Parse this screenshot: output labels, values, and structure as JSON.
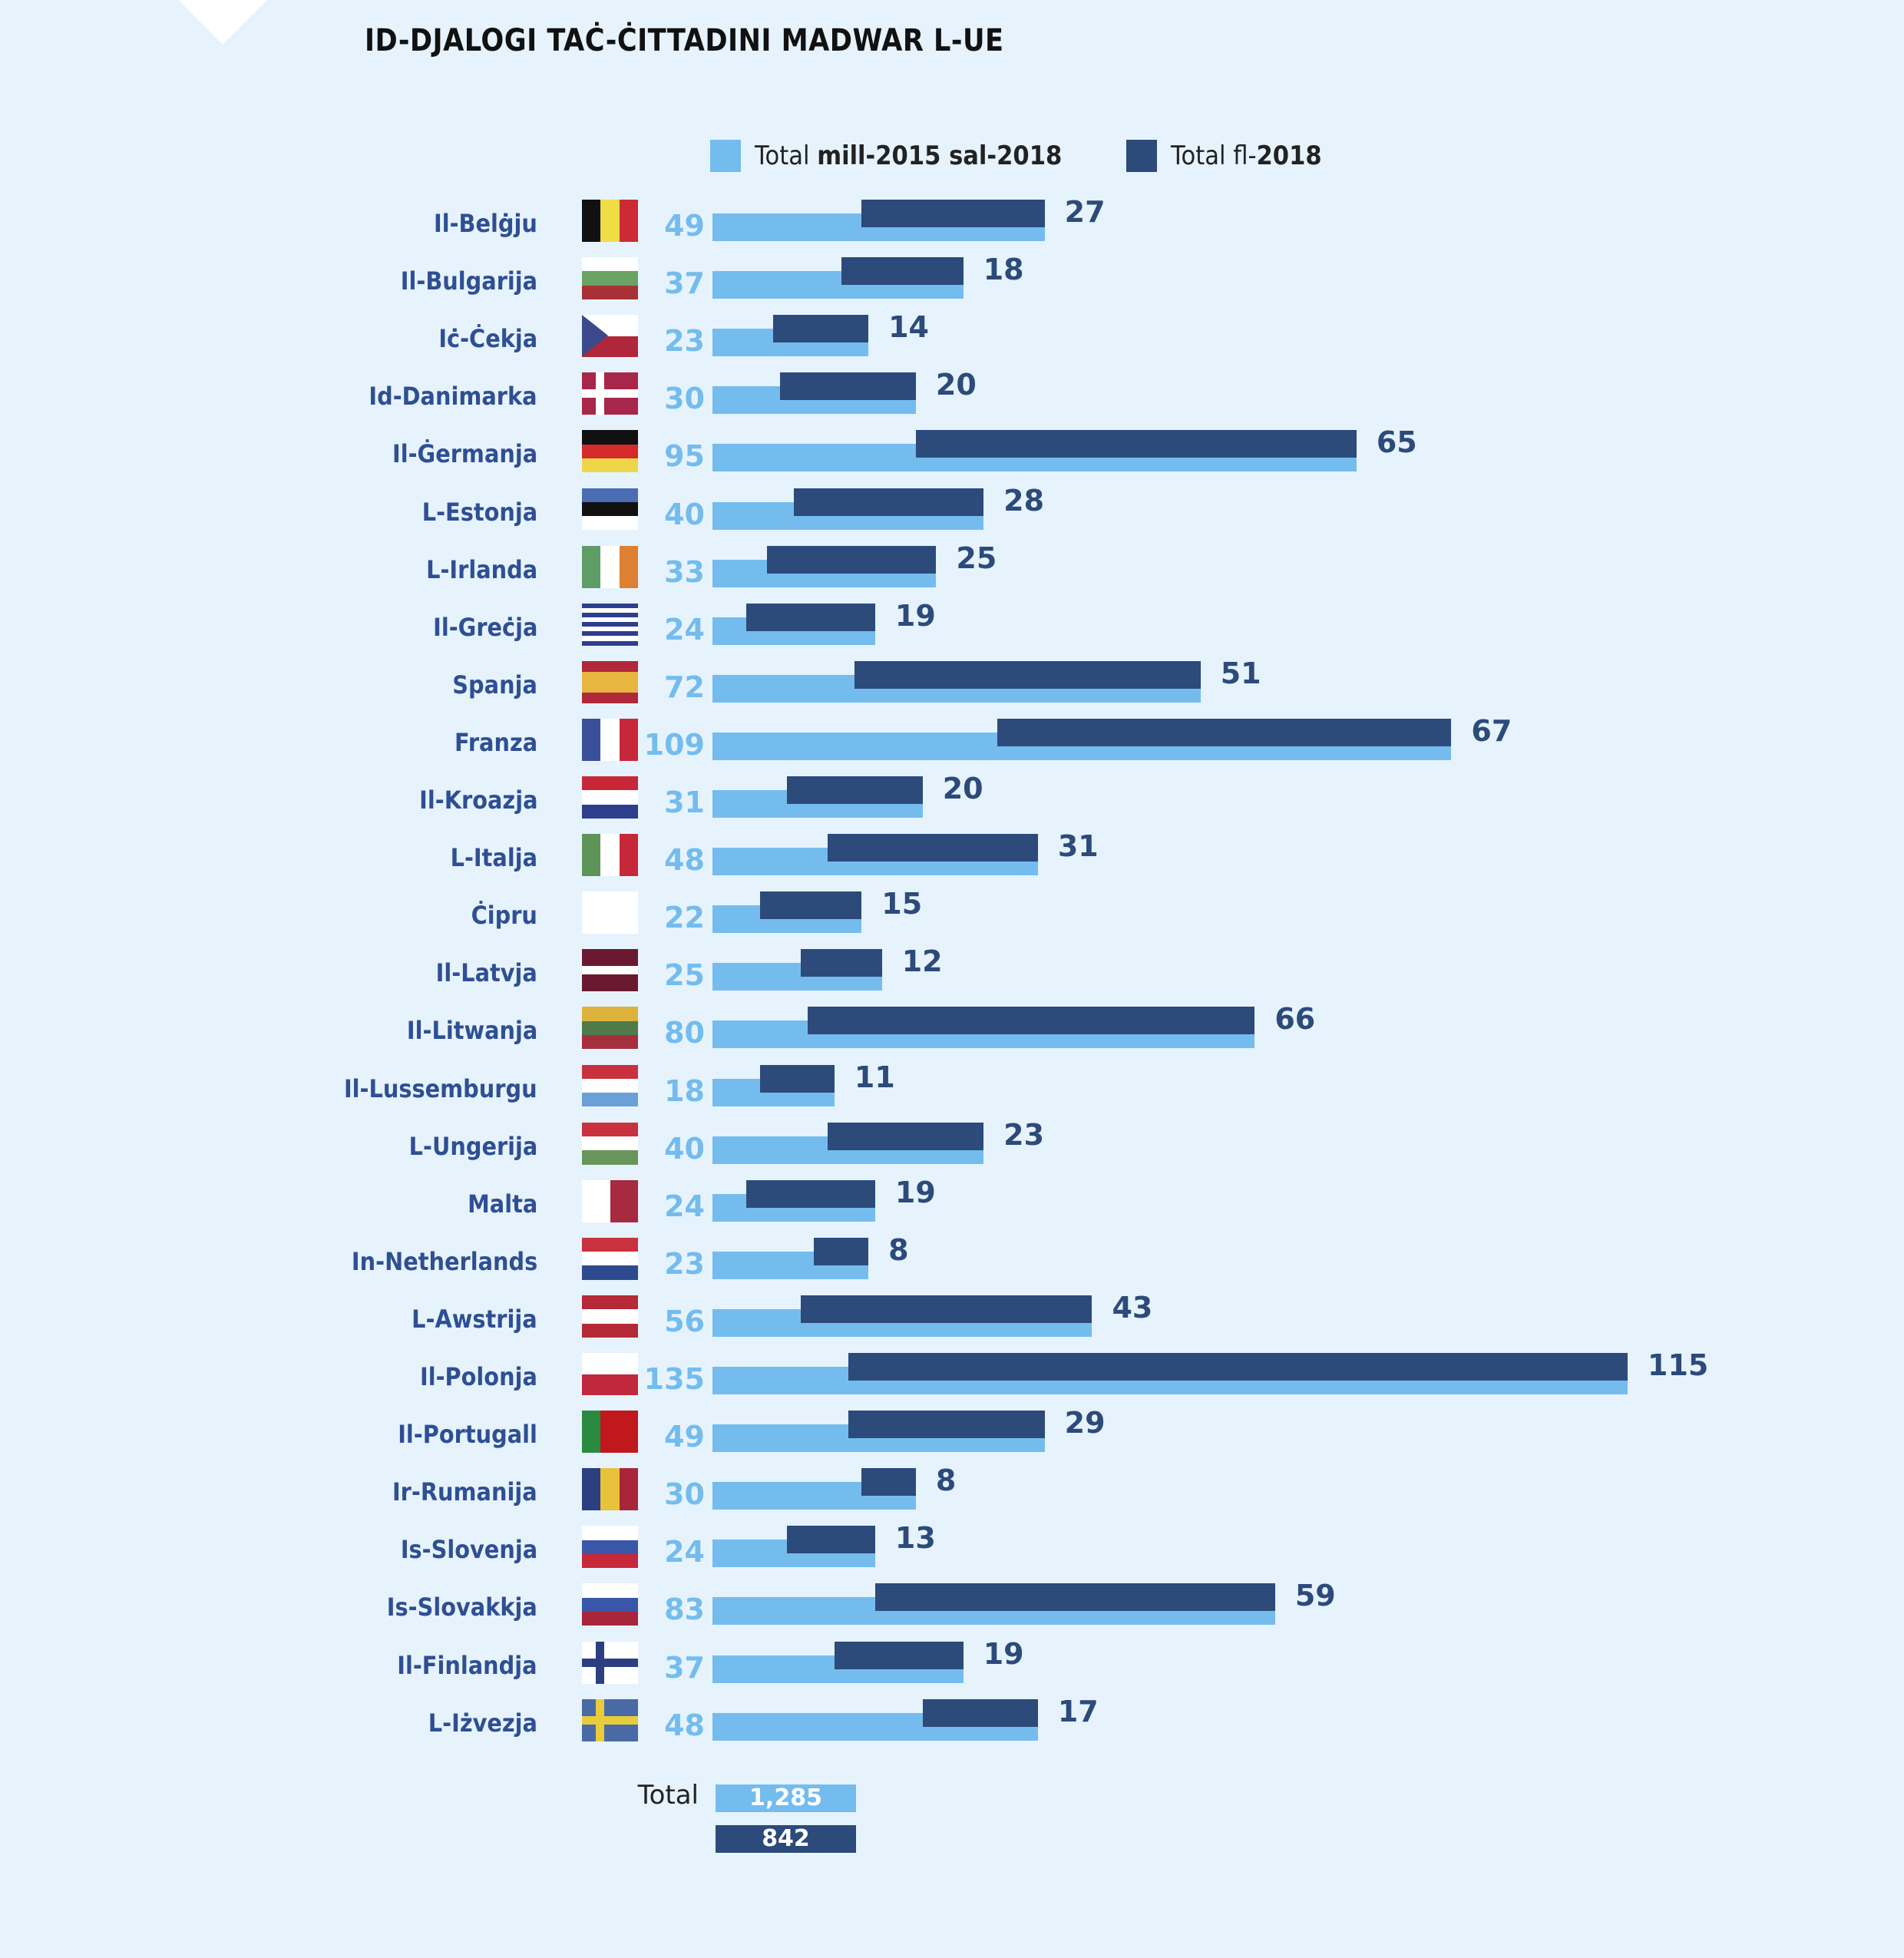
{
  "title": "ID-DJALOGI TAĊ-ĊITTADINI MADWAR L-UE",
  "colors": {
    "light": "#74bcee",
    "dark": "#2c4a7a",
    "background": "#e6f3fd",
    "label": "#2f4f94"
  },
  "chart_data": {
    "type": "bar",
    "orientation": "horizontal",
    "title": "ID-DJALOGI TAĊ-ĊITTADINI MADWAR L-UE",
    "legend": {
      "placement": "top",
      "entries": [
        {
          "prefix": "Total ",
          "bold": "mill-2015 sal-2018",
          "color": "#74bcee"
        },
        {
          "prefix": "Total fl-",
          "bold": "2018",
          "color": "#2c4a7a"
        }
      ]
    },
    "categories": [
      "Il-Belġju",
      "Il-Bulgarija",
      "Iċ-Ċekja",
      "Id-Danimarka",
      "Il-Ġermanja",
      "L-Estonja",
      "L-Irlanda",
      "Il-Greċja",
      "Spanja",
      "Franza",
      "Il-Kroazja",
      "L-Italja",
      "Ċipru",
      "Il-Latvja",
      "Il-Litwanja",
      "Il-Lussemburgu",
      "L-Ungerija",
      "Malta",
      "In-Netherlands",
      "L-Awstrija",
      "Il-Polonja",
      "Il-Portugall",
      "Ir-Rumanija",
      "Is-Slovenja",
      "Is-Slovakkja",
      "Il-Finlandja",
      "L-Iżvezja"
    ],
    "series": [
      {
        "name": "Total mill-2015 sal-2018",
        "values": [
          49,
          37,
          23,
          30,
          95,
          40,
          33,
          24,
          72,
          109,
          31,
          48,
          22,
          25,
          80,
          18,
          40,
          24,
          23,
          56,
          135,
          49,
          30,
          24,
          83,
          37,
          48
        ]
      },
      {
        "name": "Total fl-2018",
        "values": [
          27,
          18,
          14,
          20,
          65,
          28,
          25,
          19,
          51,
          67,
          20,
          31,
          15,
          12,
          66,
          11,
          23,
          19,
          8,
          43,
          115,
          29,
          8,
          13,
          59,
          19,
          17
        ]
      }
    ],
    "flags": [
      {
        "d": "v",
        "c": [
          "#111",
          "#eedd44",
          "#cc2b35"
        ]
      },
      {
        "d": "h",
        "c": [
          "#fff",
          "#6aa364",
          "#a83138"
        ]
      },
      {
        "d": "cz",
        "c": [
          "#fff",
          "#b0263a",
          "#3a4a8a"
        ]
      },
      {
        "d": "cross",
        "c": [
          "#a8264a",
          "#fff"
        ]
      },
      {
        "d": "h",
        "c": [
          "#111",
          "#d42a2a",
          "#eed64a"
        ]
      },
      {
        "d": "h",
        "c": [
          "#4a6cb3",
          "#111",
          "#fff"
        ]
      },
      {
        "d": "v",
        "c": [
          "#5e9e66",
          "#fff",
          "#dd8034"
        ]
      },
      {
        "d": "h",
        "c": [
          "#2d3f8c",
          "#fff",
          "#2d3f8c",
          "#fff",
          "#2d3f8c",
          "#fff",
          "#2d3f8c",
          "#fff",
          "#2d3f8c"
        ]
      },
      {
        "d": "h",
        "c": [
          "#b0283a",
          "#e8b540",
          "#e8b540",
          "#b0283a"
        ]
      },
      {
        "d": "v",
        "c": [
          "#3a4f9a",
          "#fff",
          "#c6283a"
        ]
      },
      {
        "d": "h",
        "c": [
          "#c62838",
          "#fff",
          "#2d3f8c"
        ]
      },
      {
        "d": "v",
        "c": [
          "#5e9457",
          "#fff",
          "#c6283a"
        ]
      },
      {
        "d": "h",
        "c": [
          "#fff"
        ]
      },
      {
        "d": "h",
        "c": [
          "#6a1a30",
          "#6a1a30",
          "#fff",
          "#6a1a30",
          "#6a1a30"
        ]
      },
      {
        "d": "h",
        "c": [
          "#ddb23a",
          "#4f7a4a",
          "#a4303e"
        ]
      },
      {
        "d": "h",
        "c": [
          "#c9313e",
          "#fff",
          "#6aa0d8"
        ]
      },
      {
        "d": "h",
        "c": [
          "#c9313e",
          "#fff",
          "#67955a"
        ]
      },
      {
        "d": "v",
        "c": [
          "#fff",
          "#a62a40"
        ]
      },
      {
        "d": "h",
        "c": [
          "#c9313e",
          "#fff",
          "#2d4a8c"
        ]
      },
      {
        "d": "h",
        "c": [
          "#b52a36",
          "#fff",
          "#b52a36"
        ]
      },
      {
        "d": "h",
        "c": [
          "#fff",
          "#c0283e"
        ]
      },
      {
        "d": "v",
        "c": [
          "#2a8a40",
          "#c0181c",
          "#c0181c"
        ]
      },
      {
        "d": "v",
        "c": [
          "#2c3f80",
          "#e8c23a",
          "#a8263a"
        ]
      },
      {
        "d": "h",
        "c": [
          "#fff",
          "#3a56a8",
          "#c6283a"
        ]
      },
      {
        "d": "h",
        "c": [
          "#fff",
          "#3a56a8",
          "#a8263a"
        ]
      },
      {
        "d": "cross",
        "c": [
          "#fff",
          "#2c3f80"
        ]
      },
      {
        "d": "cross",
        "c": [
          "#4a6aa5",
          "#e8cc3a"
        ]
      }
    ],
    "xlim": [
      0,
      135
    ],
    "grid": false
  },
  "totals": {
    "label": "Total",
    "light": "1,285",
    "dark": "842"
  }
}
